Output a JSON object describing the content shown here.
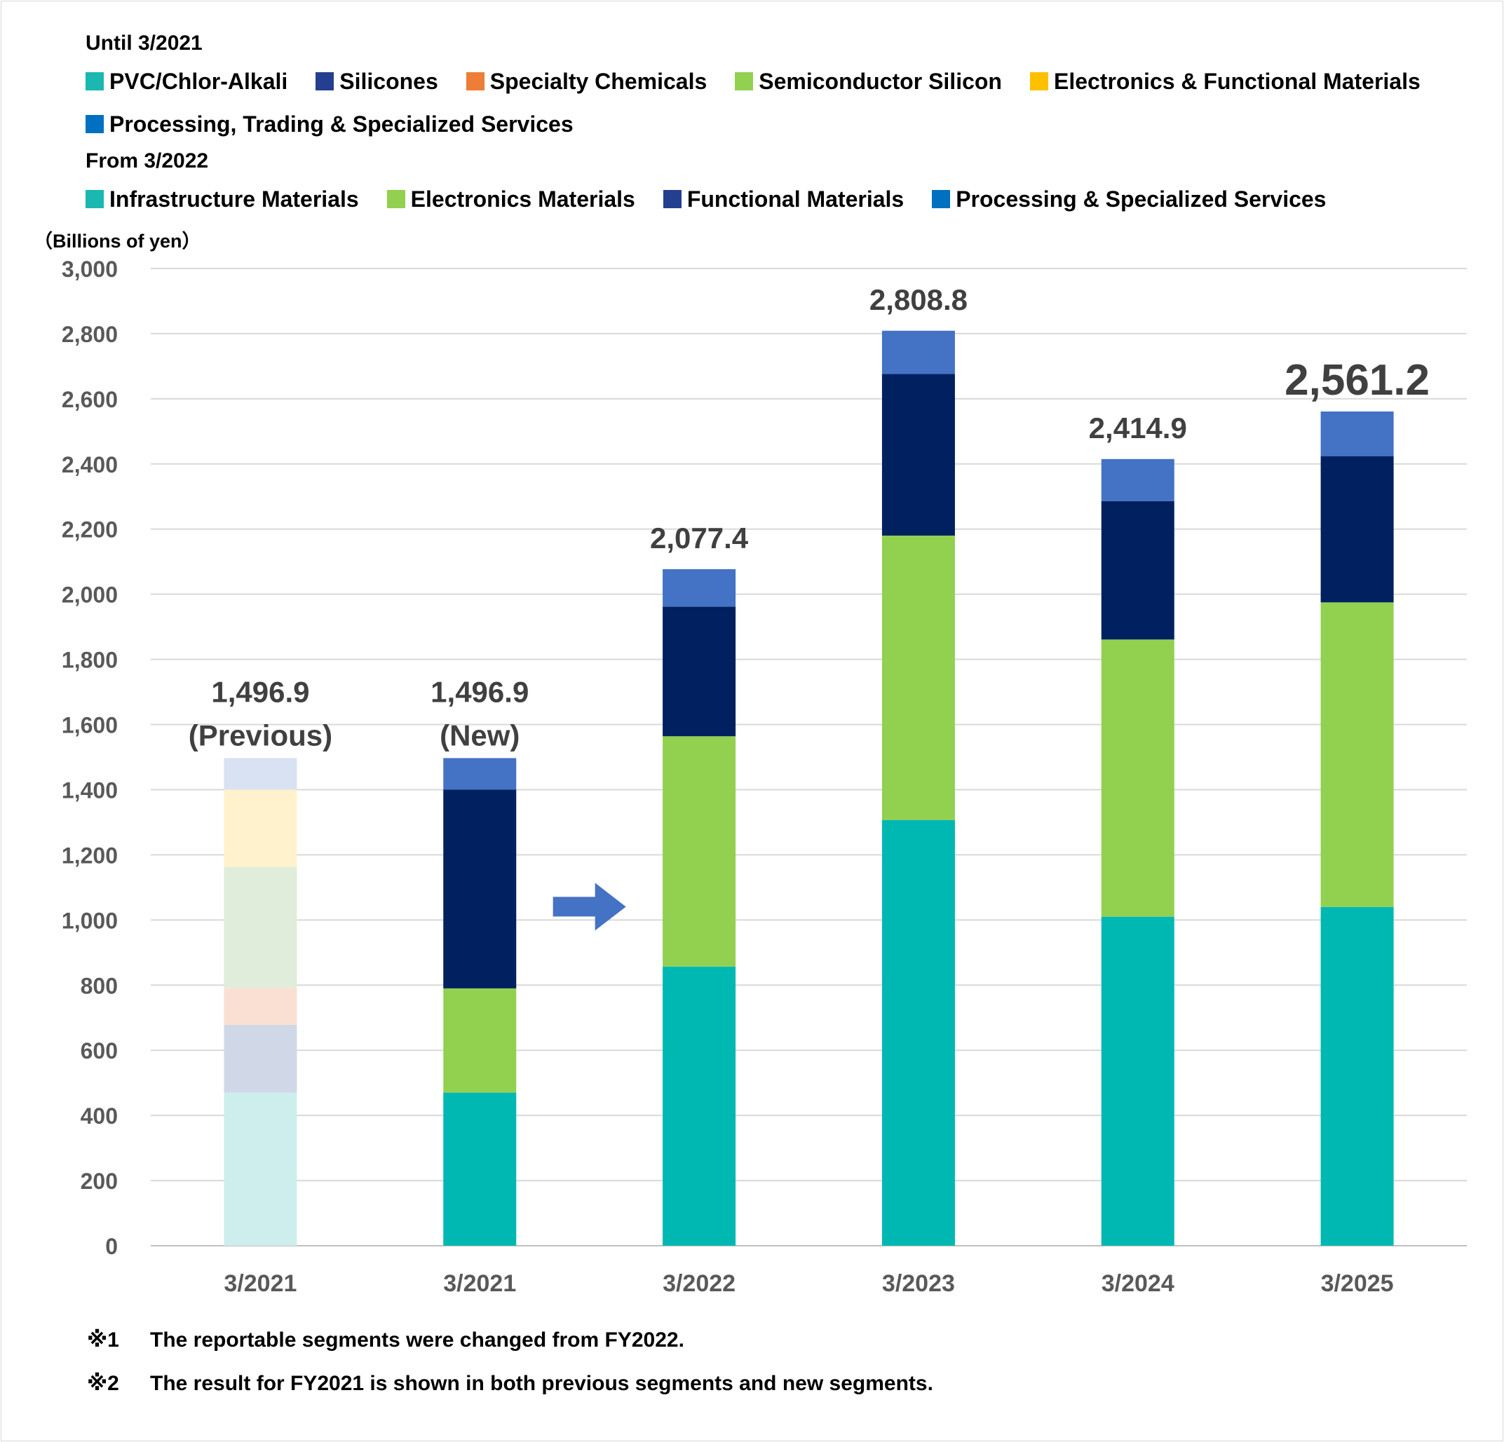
{
  "legend": {
    "until_heading": "Until 3/2021",
    "until_items": [
      {
        "label": "PVC/Chlor-Alkali",
        "color": "#1ab8b0"
      },
      {
        "label": "Silicones",
        "color": "#243f8f"
      },
      {
        "label": "Specialty Chemicals",
        "color": "#ee7d37"
      },
      {
        "label": "Semiconductor Silicon",
        "color": "#92d050"
      },
      {
        "label": "Electronics & Functional Materials",
        "color": "#ffc000"
      }
    ],
    "until_items_row2": [
      {
        "label": "Processing, Trading & Specialized Services",
        "color": "#0070c0"
      }
    ],
    "from_heading": "From 3/2022",
    "from_items": [
      {
        "label": "Infrastructure Materials",
        "color": "#1ab8b0"
      },
      {
        "label": "Electronics Materials",
        "color": "#92d050"
      },
      {
        "label": "Functional Materials",
        "color": "#243f8f"
      },
      {
        "label": "Processing & Specialized Services",
        "color": "#0070c0"
      }
    ]
  },
  "footnotes": [
    {
      "mark": "※1",
      "text": "The reportable segments were changed from FY2022."
    },
    {
      "mark": "※2",
      "text": "The result for FY2021 is shown in both previous segments and new segments."
    }
  ],
  "chart_data": {
    "type": "bar",
    "stacked": true,
    "ylabel": "（Billions of yen）",
    "ylim": [
      0,
      3000
    ],
    "yticks": [
      0,
      200,
      400,
      600,
      800,
      1000,
      1200,
      1400,
      1600,
      1800,
      2000,
      2200,
      2400,
      2600,
      2800,
      3000
    ],
    "ytick_labels": [
      "0",
      "200",
      "400",
      "600",
      "800",
      "1,000",
      "1,200",
      "1,400",
      "1,600",
      "1,800",
      "2,000",
      "2,200",
      "2,400",
      "2,600",
      "2,800",
      "3,000"
    ],
    "grid": true,
    "categories": [
      "3/2021",
      "3/2021",
      "3/2022",
      "3/2023",
      "3/2024",
      "3/2025"
    ],
    "bars": [
      {
        "category": "3/2021",
        "total_label": "1,496.9",
        "sub_label": "(Previous)",
        "faded": true,
        "segments": [
          {
            "name": "PVC/Chlor-Alkali",
            "value": 470,
            "color": "#cdeeed"
          },
          {
            "name": "Silicones",
            "value": 208,
            "color": "#d0d8e8"
          },
          {
            "name": "Specialty Chemicals",
            "value": 113,
            "color": "#f9e0d2"
          },
          {
            "name": "Semiconductor Silicon",
            "value": 372,
            "color": "#e1eddb"
          },
          {
            "name": "Electronics & Functional Materials",
            "value": 237,
            "color": "#fff2cc"
          },
          {
            "name": "Processing, Trading & Specialized Services",
            "value": 97,
            "color": "#d9e2f3"
          }
        ]
      },
      {
        "category": "3/2021",
        "total_label": "1,496.9",
        "sub_label": "(New)",
        "faded": false,
        "segments": [
          {
            "name": "Infrastructure Materials",
            "value": 470,
            "color": "#00b8b2"
          },
          {
            "name": "Electronics Materials",
            "value": 320,
            "color": "#92d050"
          },
          {
            "name": "Functional Materials",
            "value": 610,
            "color": "#002060"
          },
          {
            "name": "Processing & Specialized Services",
            "value": 97,
            "color": "#4472c4"
          }
        ]
      },
      {
        "category": "3/2022",
        "total_label": "2,077.4",
        "sub_label": "",
        "faded": false,
        "segments": [
          {
            "name": "Infrastructure Materials",
            "value": 857,
            "color": "#00b8b2"
          },
          {
            "name": "Electronics Materials",
            "value": 707,
            "color": "#92d050"
          },
          {
            "name": "Functional Materials",
            "value": 398,
            "color": "#002060"
          },
          {
            "name": "Processing & Specialized Services",
            "value": 115,
            "color": "#4472c4"
          }
        ]
      },
      {
        "category": "3/2023",
        "total_label": "2,808.8",
        "sub_label": "",
        "faded": false,
        "segments": [
          {
            "name": "Infrastructure Materials",
            "value": 1307,
            "color": "#00b8b2"
          },
          {
            "name": "Electronics Materials",
            "value": 873,
            "color": "#92d050"
          },
          {
            "name": "Functional Materials",
            "value": 496,
            "color": "#002060"
          },
          {
            "name": "Processing & Specialized Services",
            "value": 133,
            "color": "#4472c4"
          }
        ]
      },
      {
        "category": "3/2024",
        "total_label": "2,414.9",
        "sub_label": "",
        "faded": false,
        "segments": [
          {
            "name": "Infrastructure Materials",
            "value": 1010,
            "color": "#00b8b2"
          },
          {
            "name": "Electronics Materials",
            "value": 851,
            "color": "#92d050"
          },
          {
            "name": "Functional Materials",
            "value": 425,
            "color": "#002060"
          },
          {
            "name": "Processing & Specialized Services",
            "value": 129,
            "color": "#4472c4"
          }
        ]
      },
      {
        "category": "3/2025",
        "total_label": "2,561.2",
        "sub_label": "",
        "faded": false,
        "large_label": true,
        "segments": [
          {
            "name": "Infrastructure Materials",
            "value": 1040,
            "color": "#00b8b2"
          },
          {
            "name": "Electronics Materials",
            "value": 935,
            "color": "#92d050"
          },
          {
            "name": "Functional Materials",
            "value": 449,
            "color": "#002060"
          },
          {
            "name": "Processing & Specialized Services",
            "value": 137,
            "color": "#4472c4"
          }
        ]
      }
    ],
    "annotation_arrow": {
      "from_category_index": 1,
      "to_category_index": 2,
      "color": "#4472c4"
    }
  }
}
